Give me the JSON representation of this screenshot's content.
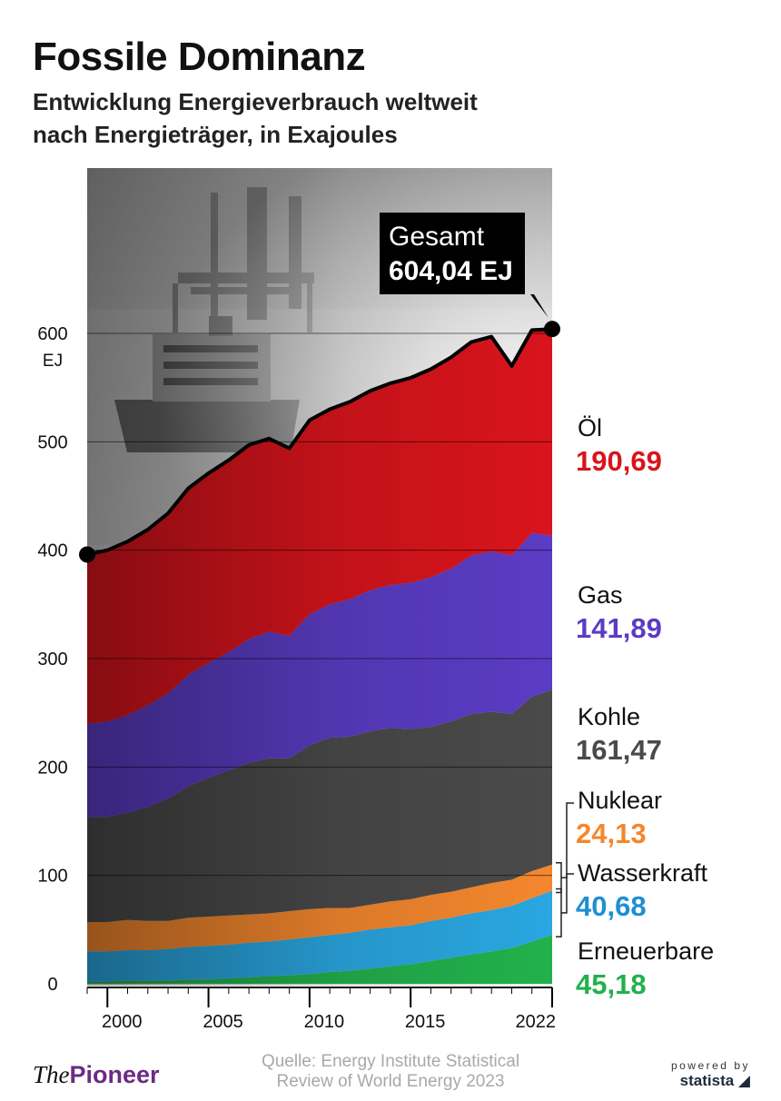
{
  "header": {
    "title": "Fossile Dominanz",
    "subtitle_line1": "Entwicklung Energieverbrauch weltweit",
    "subtitle_line2": "nach Energieträger, in Exajoules"
  },
  "footer": {
    "logo_the": "The",
    "logo_pioneer": "Pioneer",
    "source_line1": "Quelle: Energy Institute Statistical",
    "source_line2": "Review of World Energy 2023",
    "powered_by": "powered by",
    "powered_brand": "statista"
  },
  "chart_data": {
    "type": "area",
    "stacked": true,
    "x": [
      1999,
      2000,
      2001,
      2002,
      2003,
      2004,
      2005,
      2006,
      2007,
      2008,
      2009,
      2010,
      2011,
      2012,
      2013,
      2014,
      2015,
      2016,
      2017,
      2018,
      2019,
      2020,
      2021,
      2022
    ],
    "x_ticks": [
      "2000",
      "2005",
      "2010",
      "2015",
      "2022"
    ],
    "x_tick_values": [
      2000,
      2005,
      2010,
      2015,
      2022
    ],
    "y_ticks": [
      "0",
      "100",
      "200",
      "300",
      "400",
      "500",
      "600"
    ],
    "y_tick_values": [
      0,
      100,
      200,
      300,
      400,
      500,
      600
    ],
    "y_unit": "EJ",
    "ylim": [
      0,
      600
    ],
    "series": [
      {
        "name": "Erneuerbare",
        "color": "#22b14c",
        "values": [
          2,
          2,
          3,
          3,
          3,
          4,
          4,
          5,
          6,
          7,
          8,
          9,
          11,
          12,
          14,
          16,
          18,
          21,
          24,
          27,
          30,
          33,
          39,
          45.18
        ],
        "label_value": "45,18"
      },
      {
        "name": "Wasserkraft",
        "color": "#2aa6e0",
        "values": [
          28,
          28,
          28,
          28,
          29,
          30,
          31,
          31,
          32,
          32,
          33,
          34,
          34,
          35,
          36,
          36,
          36,
          37,
          37,
          38,
          38,
          39,
          40,
          40.68
        ],
        "label_value": "40,68"
      },
      {
        "name": "Nuklear",
        "color": "#f4872e",
        "values": [
          27,
          27,
          28,
          27,
          26,
          27,
          27,
          27,
          26,
          26,
          26,
          26,
          25,
          23,
          23,
          24,
          24,
          24,
          24,
          24,
          25,
          24,
          25,
          24.13
        ],
        "label_value": "24,13"
      },
      {
        "name": "Kohle",
        "color": "#4a4a4a",
        "values": [
          97,
          97,
          99,
          105,
          113,
          121,
          128,
          134,
          140,
          143,
          141,
          151,
          157,
          158,
          160,
          160,
          157,
          155,
          157,
          160,
          158,
          153,
          161,
          161.47
        ],
        "label_value": "161,47"
      },
      {
        "name": "Gas",
        "color": "#5b3cc4",
        "values": [
          86,
          88,
          90,
          94,
          97,
          103,
          106,
          109,
          114,
          117,
          113,
          121,
          123,
          127,
          130,
          132,
          135,
          138,
          141,
          146,
          148,
          146,
          151,
          141.89
        ],
        "label_value": "141,89"
      },
      {
        "name": "Öl",
        "color": "#d9141c",
        "values": [
          156,
          158,
          160,
          162,
          166,
          172,
          175,
          177,
          179,
          178,
          173,
          179,
          180,
          182,
          184,
          186,
          189,
          192,
          195,
          197,
          198,
          175,
          187,
          190.69
        ],
        "label_value": "190,69"
      }
    ],
    "total": {
      "label": "Gesamt",
      "value_label": "604,04 EJ",
      "first_value": 396,
      "last_value": 604.04
    },
    "legend_placement": "right",
    "grid": true
  }
}
